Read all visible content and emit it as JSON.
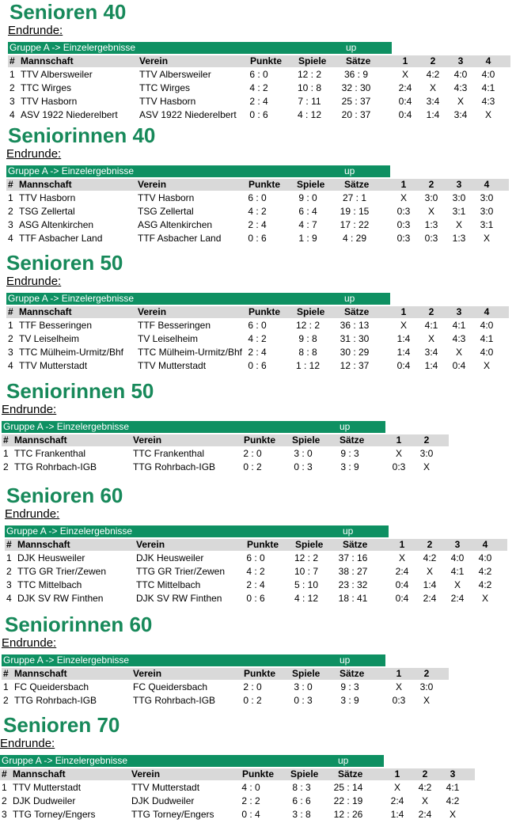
{
  "sections": [
    {
      "title": "Senioren 40",
      "subtitle": "Endrunde:",
      "group": "Gruppe A -> Einzelergebnisse",
      "link": "up",
      "header": [
        "#",
        "Mannschaft",
        "Verein",
        "Punkte",
        "Spiele",
        "Sätze",
        "1",
        "2",
        "3",
        "4"
      ],
      "rows": [
        [
          "1",
          "TTV Albersweiler",
          "TTV Albersweiler",
          "6 : 0",
          "12 : 2",
          "36 : 9",
          "X",
          "4:2",
          "4:0",
          "4:0"
        ],
        [
          "2",
          "TTC Wirges",
          "TTC Wirges",
          "4 : 2",
          "10 : 8",
          "32 : 30",
          "2:4",
          "X",
          "4:3",
          "4:1"
        ],
        [
          "3",
          "TTV Hasborn",
          "TTV Hasborn",
          "2 : 4",
          "7 : 11",
          "25 : 37",
          "0:4",
          "3:4",
          "X",
          "4:3"
        ],
        [
          "4",
          "ASV 1922 Niederelbert",
          "ASV 1922 Niederelbert",
          "0 : 6",
          "4 : 12",
          "20 : 37",
          "0:4",
          "1:4",
          "3:4",
          "X"
        ]
      ]
    },
    {
      "title": "Seniorinnen 40",
      "subtitle": "Endrunde:",
      "group": "Gruppe A -> Einzelergebnisse",
      "link": "up",
      "header": [
        "#",
        "Mannschaft",
        "Verein",
        "Punkte",
        "Spiele",
        "Sätze",
        "1",
        "2",
        "3",
        "4"
      ],
      "rows": [
        [
          "1",
          "TTV Hasborn",
          "TTV Hasborn",
          "6 : 0",
          "9 : 0",
          "27 : 1",
          "X",
          "3:0",
          "3:0",
          "3:0"
        ],
        [
          "2",
          "TSG Zellertal",
          "TSG Zellertal",
          "4 : 2",
          "6 : 4",
          "19 : 15",
          "0:3",
          "X",
          "3:1",
          "3:0"
        ],
        [
          "3",
          "ASG Altenkirchen",
          "ASG Altenkirchen",
          "2 : 4",
          "4 : 7",
          "17 : 22",
          "0:3",
          "1:3",
          "X",
          "3:1"
        ],
        [
          "4",
          "TTF Asbacher Land",
          "TTF Asbacher Land",
          "0 : 6",
          "1 : 9",
          "4 : 29",
          "0:3",
          "0:3",
          "1:3",
          "X"
        ]
      ]
    },
    {
      "title": "Senioren 50",
      "subtitle": "Endrunde:",
      "group": "Gruppe A -> Einzelergebnisse",
      "link": "up",
      "header": [
        "#",
        "Mannschaft",
        "Verein",
        "Punkte",
        "Spiele",
        "Sätze",
        "1",
        "2",
        "3",
        "4"
      ],
      "rows": [
        [
          "1",
          "TTF Besseringen",
          "TTF Besseringen",
          "6 : 0",
          "12 : 2",
          "36 : 13",
          "X",
          "4:1",
          "4:1",
          "4:0"
        ],
        [
          "2",
          "TV Leiselheim",
          "TV Leiselheim",
          "4 : 2",
          "9 : 8",
          "31 : 30",
          "1:4",
          "X",
          "4:3",
          "4:1"
        ],
        [
          "3",
          "TTC Mülheim-Urmitz/Bhf",
          "TTC Mülheim-Urmitz/Bhf",
          "2 : 4",
          "8 : 8",
          "30 : 29",
          "1:4",
          "3:4",
          "X",
          "4:0"
        ],
        [
          "4",
          "TTV Mutterstadt",
          "TTV Mutterstadt",
          "0 : 6",
          "1 : 12",
          "12 : 37",
          "0:4",
          "1:4",
          "0:4",
          "X"
        ]
      ]
    },
    {
      "title": "Seniorinnen 50",
      "subtitle": "Endrunde:",
      "group": "Gruppe A -> Einzelergebnisse",
      "link": "up",
      "header": [
        "#",
        "Mannschaft",
        "Verein",
        "Punkte",
        "Spiele",
        "Sätze",
        "1",
        "2"
      ],
      "rows": [
        [
          "1",
          "TTC Frankenthal",
          "TTC Frankenthal",
          "2 : 0",
          "3 : 0",
          "9 : 3",
          "X",
          "3:0"
        ],
        [
          "2",
          "TTG Rohrbach-IGB",
          "TTG Rohrbach-IGB",
          "0 : 2",
          "0 : 3",
          "3 : 9",
          "0:3",
          "X"
        ]
      ]
    },
    {
      "title": "Senioren 60",
      "subtitle": "Endrunde:",
      "group": "Gruppe A -> Einzelergebnisse",
      "link": "up",
      "header": [
        "#",
        "Mannschaft",
        "Verein",
        "Punkte",
        "Spiele",
        "Sätze",
        "1",
        "2",
        "3",
        "4"
      ],
      "rows": [
        [
          "1",
          "DJK Heusweiler",
          "DJK Heusweiler",
          "6 : 0",
          "12 : 2",
          "37 : 16",
          "X",
          "4:2",
          "4:0",
          "4:0"
        ],
        [
          "2",
          "TTG GR Trier/Zewen",
          "TTG GR Trier/Zewen",
          "4 : 2",
          "10 : 7",
          "38 : 27",
          "2:4",
          "X",
          "4:1",
          "4:2"
        ],
        [
          "3",
          "TTC Mittelbach",
          "TTC Mittelbach",
          "2 : 4",
          "5 : 10",
          "23 : 32",
          "0:4",
          "1:4",
          "X",
          "4:2"
        ],
        [
          "4",
          "DJK SV RW Finthen",
          "DJK SV RW Finthen",
          "0 : 6",
          "4 : 12",
          "18 : 41",
          "0:4",
          "2:4",
          "2:4",
          "X"
        ]
      ]
    },
    {
      "title": "Seniorinnen 60",
      "subtitle": "Endrunde:",
      "group": "Gruppe A -> Einzelergebnisse",
      "link": "up",
      "header": [
        "#",
        "Mannschaft",
        "Verein",
        "Punkte",
        "Spiele",
        "Sätze",
        "1",
        "2"
      ],
      "rows": [
        [
          "1",
          "FC Queidersbach",
          "FC Queidersbach",
          "2 : 0",
          "3 : 0",
          "9 : 3",
          "X",
          "3:0"
        ],
        [
          "2",
          "TTG Rohrbach-IGB",
          "TTG Rohrbach-IGB",
          "0 : 2",
          "0 : 3",
          "3 : 9",
          "0:3",
          "X"
        ]
      ]
    },
    {
      "title": "Senioren 70",
      "subtitle": "Endrunde:",
      "group": "Gruppe A -> Einzelergebnisse",
      "link": "up",
      "header": [
        "#",
        "Mannschaft",
        "Verein",
        "Punkte",
        "Spiele",
        "Sätze",
        "1",
        "2",
        "3"
      ],
      "rows": [
        [
          "1",
          "TTV Mutterstadt",
          "TTV Mutterstadt",
          "4 : 0",
          "8 : 3",
          "25 : 14",
          "X",
          "4:2",
          "4:1"
        ],
        [
          "2",
          "DJK Dudweiler",
          "DJK Dudweiler",
          "2 : 2",
          "6 : 6",
          "22 : 19",
          "2:4",
          "X",
          "4:2"
        ],
        [
          "3",
          "TTG Torney/Engers",
          "TTG Torney/Engers",
          "0 : 4",
          "3 : 8",
          "12 : 26",
          "1:4",
          "2:4",
          "X"
        ]
      ]
    }
  ]
}
